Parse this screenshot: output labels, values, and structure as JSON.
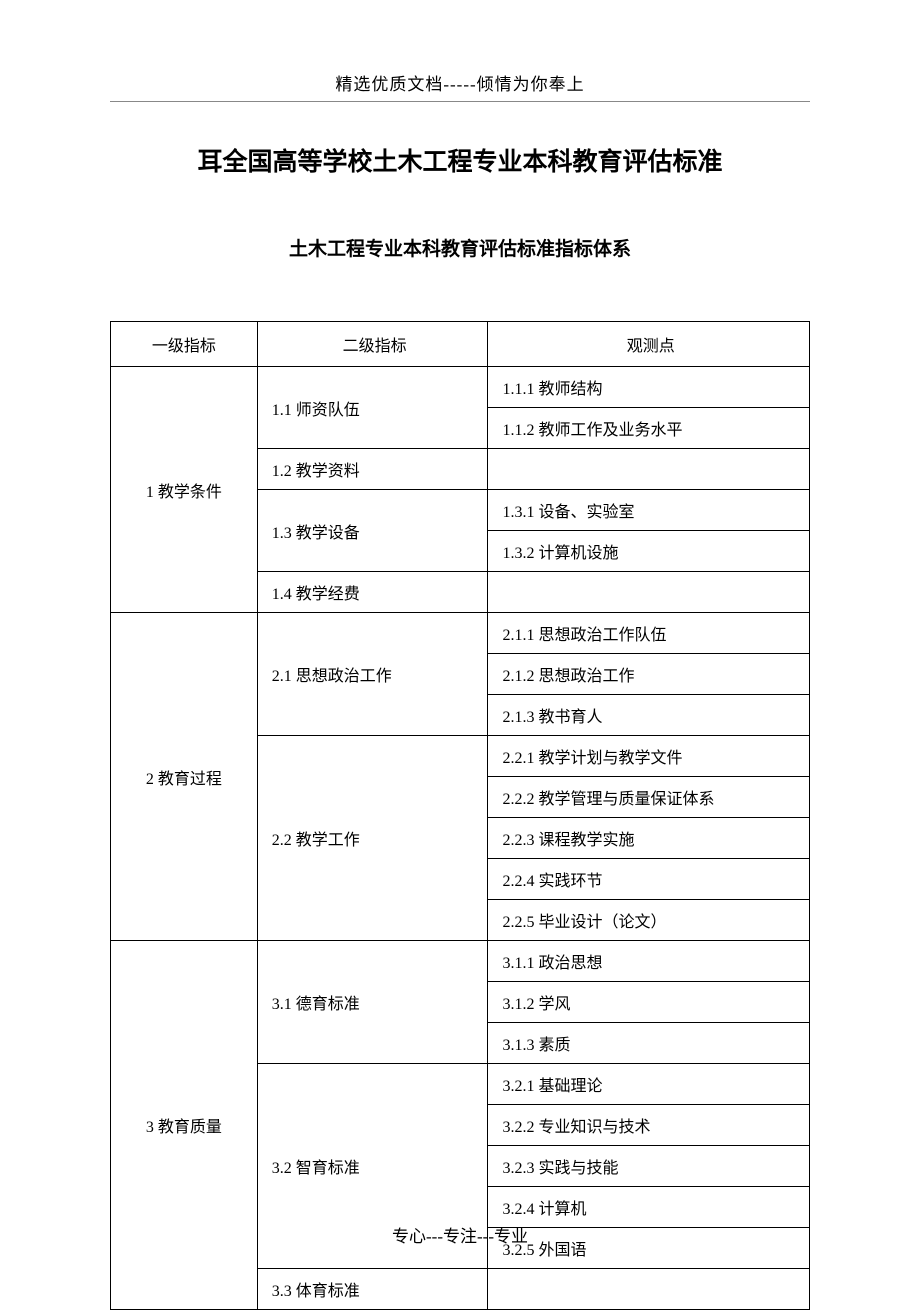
{
  "header": {
    "topLine": "精选优质文档-----倾情为你奉上"
  },
  "titles": {
    "main": "耳全国高等学校土木工程专业本科教育评估标准",
    "sub": "土木工程专业本科教育评估标准指标体系"
  },
  "tableHeaders": {
    "level1": "一级指标",
    "level2": "二级指标",
    "obs": "观测点"
  },
  "indicators": [
    {
      "level1": "1  教学条件",
      "level2s": [
        {
          "label": "1.1  师资队伍",
          "obs": [
            "1.1.1  教师结构",
            "1.1.2  教师工作及业务水平"
          ]
        },
        {
          "label": "1.2  教学资料",
          "obs": [
            ""
          ]
        },
        {
          "label": "1.3  教学设备",
          "obs": [
            "1.3.1   设备、实验室",
            "1.3.2  计算机设施"
          ]
        },
        {
          "label": "1.4  教学经费",
          "obs": [
            ""
          ]
        }
      ]
    },
    {
      "level1": "2  教育过程",
      "level2s": [
        {
          "label": "2.1   思想政治工作",
          "obs": [
            "2.1.1  思想政治工作队伍",
            "2.1.2  思想政治工作",
            "2.1.3  教书育人"
          ]
        },
        {
          "label": "2.2  教学工作",
          "obs": [
            "2.2.1   教学计划与教学文件",
            "2.2.2  教学管理与质量保证体系",
            "2.2.3  课程教学实施",
            "2.2.4  实践环节",
            "2.2.5  毕业设计（论文）"
          ]
        }
      ]
    },
    {
      "level1": "3  教育质量",
      "level2s": [
        {
          "label": "3.1  德育标准",
          "obs": [
            "3.1.1  政治思想",
            "3.1.2  学风",
            "3.1.3  素质"
          ]
        },
        {
          "label": "3.2  智育标准",
          "obs": [
            "3.2.1  基础理论",
            "3.2.2  专业知识与技术",
            "3.2.3  实践与技能",
            "3.2.4 计算机",
            "3.2.5  外国语"
          ]
        },
        {
          "label": "3.3  体育标准",
          "obs": [
            ""
          ]
        }
      ]
    }
  ],
  "footer": {
    "text": "专心---专注---专业"
  }
}
